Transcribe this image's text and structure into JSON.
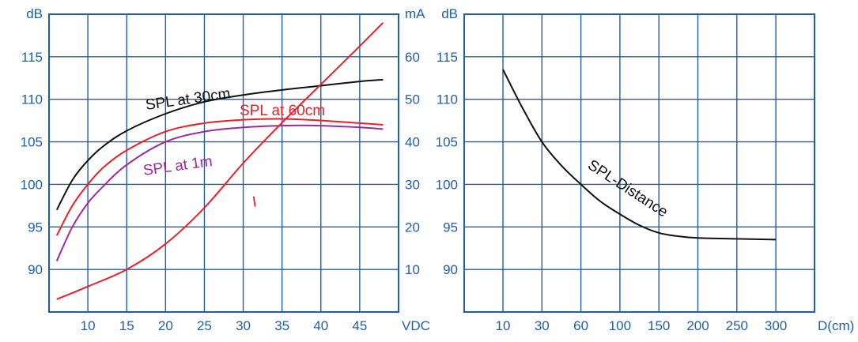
{
  "chart_data": [
    {
      "type": "line",
      "x_label": "VDC",
      "y_left_unit": "dB",
      "y_right_unit": "mA",
      "xlim": [
        5,
        50
      ],
      "ylim_left": [
        85,
        120
      ],
      "ylim_right": [
        0,
        70
      ],
      "x_ticks": [
        "10",
        "15",
        "20",
        "25",
        "30",
        "35",
        "40",
        "45"
      ],
      "y_left_ticks": [
        "115",
        "110",
        "105",
        "100",
        "95",
        "90"
      ],
      "y_right_ticks": [
        "60",
        "50",
        "40",
        "30",
        "20",
        "10"
      ],
      "grid": true,
      "colors": {
        "axis_text": "#1f5fa8",
        "grid": "#1f5fa8"
      },
      "series": [
        {
          "name": "SPL at 30cm",
          "axis": "left",
          "color": "#111111",
          "x": [
            6,
            8,
            10,
            12,
            15,
            20,
            25,
            30,
            35,
            40,
            45,
            48
          ],
          "y": [
            97,
            100.5,
            102.8,
            104.5,
            106.3,
            108.3,
            109.7,
            110.5,
            111.1,
            111.6,
            112.1,
            112.3
          ]
        },
        {
          "name": "SPL at 60cm",
          "axis": "left",
          "color": "#e8202a",
          "x": [
            6,
            8,
            10,
            12,
            15,
            20,
            25,
            30,
            35,
            40,
            45,
            48
          ],
          "y": [
            94,
            97.5,
            100,
            102,
            104,
            106.2,
            107.2,
            107.6,
            107.7,
            107.5,
            107.2,
            107.0
          ]
        },
        {
          "name": "SPL at 1m",
          "axis": "left",
          "color": "#9c2a9c",
          "x": [
            6,
            8,
            10,
            12,
            15,
            20,
            25,
            30,
            35,
            40,
            45,
            48
          ],
          "y": [
            91,
            95,
            97.8,
            99.8,
            102.3,
            105,
            106.2,
            106.7,
            106.9,
            106.9,
            106.7,
            106.5
          ]
        },
        {
          "name": "I",
          "axis": "right",
          "color": "#e8202a",
          "x": [
            6,
            10,
            15,
            20,
            25,
            30,
            35,
            40,
            45,
            48
          ],
          "y": [
            3,
            6,
            10,
            16,
            24.5,
            35,
            44.5,
            53.5,
            62.5,
            68
          ]
        }
      ],
      "annotations": [
        {
          "text": "SPL at 30cm",
          "series": "SPL at 30cm"
        },
        {
          "text": "SPL at 60cm",
          "series": "SPL at 60cm"
        },
        {
          "text": "SPL at 1m",
          "series": "SPL at 1m"
        },
        {
          "text": "I",
          "series": "I"
        }
      ]
    },
    {
      "type": "line",
      "x_label": "D(cm)",
      "y_left_unit": "dB",
      "ylim": [
        85,
        120
      ],
      "x_ticks": [
        "10",
        "30",
        "60",
        "100",
        "150",
        "200",
        "250",
        "300"
      ],
      "y_left_ticks": [
        "115",
        "110",
        "105",
        "100",
        "95",
        "90"
      ],
      "grid": true,
      "series": [
        {
          "name": "SPL-Distance",
          "color": "#111111",
          "x": [
            10,
            20,
            30,
            45,
            60,
            80,
            100,
            125,
            150,
            175,
            200,
            250,
            300
          ],
          "y": [
            113.5,
            109,
            105,
            102.2,
            100,
            98,
            96.5,
            95.2,
            94.3,
            93.9,
            93.7,
            93.6,
            93.5
          ]
        }
      ],
      "annotations": [
        {
          "text": "SPL-Distance",
          "series": "SPL-Distance"
        }
      ]
    }
  ]
}
